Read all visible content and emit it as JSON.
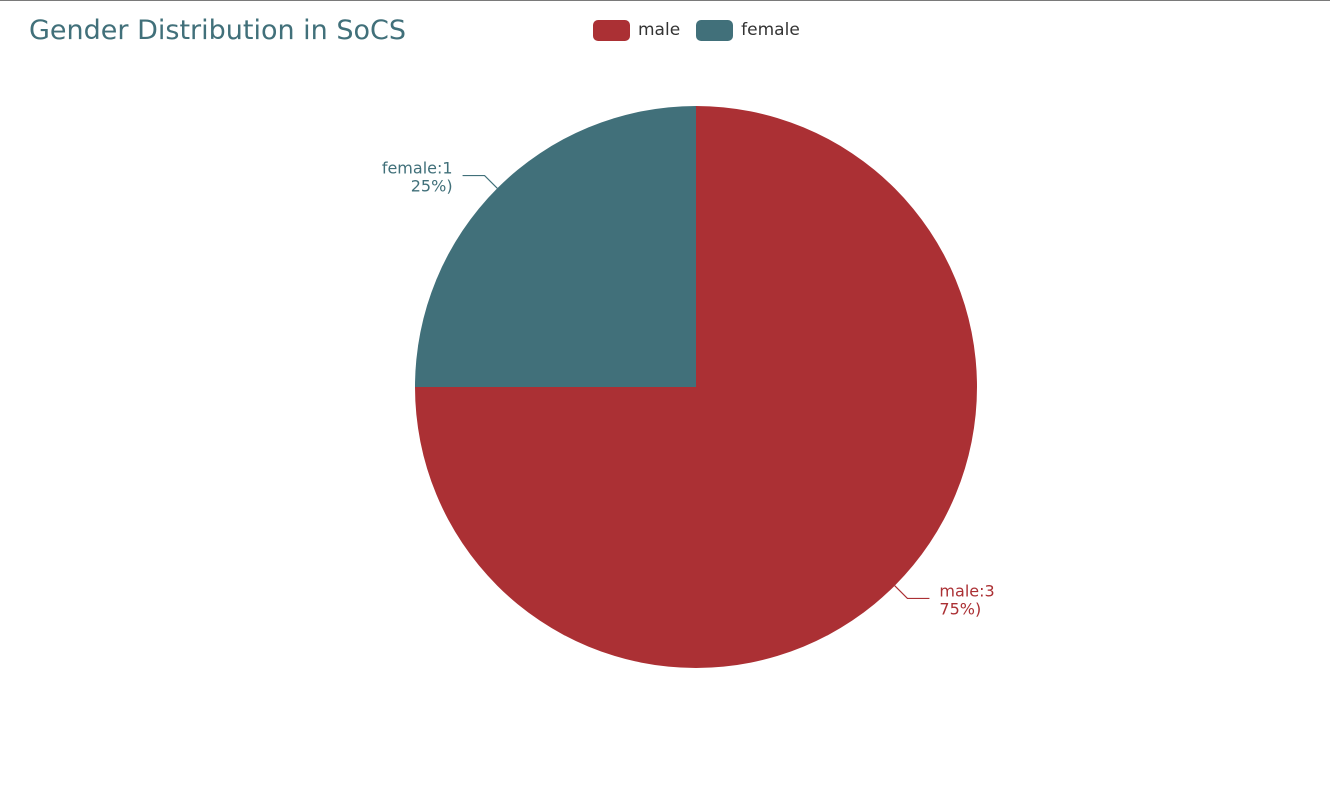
{
  "chart_data": {
    "type": "pie",
    "title": "Gender Distribution in SoCS",
    "legend_position": "top-center",
    "slices": [
      {
        "name": "male",
        "value": 3,
        "percent": 75,
        "color": "#ab3034",
        "label_line1": "male:3",
        "label_line2": "75%)"
      },
      {
        "name": "female",
        "value": 1,
        "percent": 25,
        "color": "#41707a",
        "label_line1": "female:1",
        "label_line2": "25%)"
      }
    ]
  },
  "legend": {
    "items": [
      {
        "label": "male",
        "color": "#ab3034"
      },
      {
        "label": "female",
        "color": "#41707a"
      }
    ]
  }
}
